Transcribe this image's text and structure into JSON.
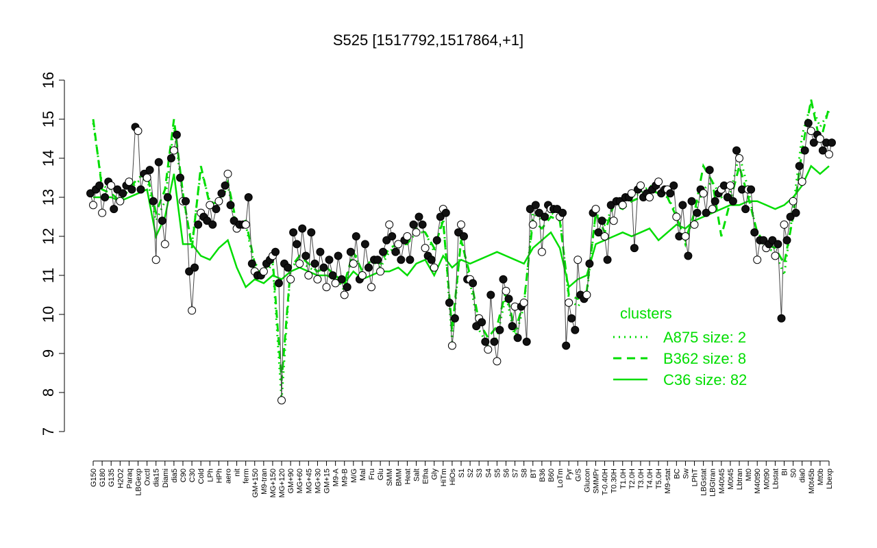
{
  "chart_data": {
    "type": "line",
    "title": "S525 [1517792,1517864,+1]",
    "ylim": [
      7,
      16
    ],
    "yticks": [
      7,
      8,
      9,
      10,
      11,
      12,
      13,
      14,
      15,
      16
    ],
    "x_tick_labels": [
      "G150",
      "G180",
      "G135",
      "H2O2",
      "Paraq",
      "LBGexp",
      "Oxctl",
      "dia15",
      "Diami",
      "dia5",
      "C90",
      "C30",
      "Cold",
      "LPh",
      "HPh",
      "aero",
      "nit",
      "ferm",
      "GM+150",
      "M9-tran",
      "MG+150",
      "MG+120",
      "GM+90",
      "MG+60",
      "MG+45",
      "MG+30",
      "GM+15",
      "M9-A",
      "M9-B",
      "M/G",
      "Mal",
      "Fru",
      "Glu",
      "SMM",
      "BMM",
      "Heat",
      "Salt",
      "Etha",
      "Gly",
      "HiTm",
      "HiOs",
      "S1",
      "S2",
      "S3",
      "S4",
      "S5",
      "S6",
      "S7",
      "S8",
      "BT",
      "B36",
      "B60",
      "LoTm",
      "Pyr",
      "G/S",
      "Glucon",
      "SMMPr",
      "T-0.40H",
      "T0.30H",
      "T1.0H",
      "T2.0H",
      "T3.0H",
      "T4.0H",
      "T5.0H",
      "M9-stat",
      "BC",
      "Sw",
      "LPhT",
      "LBGstat",
      "LBGtran",
      "M40t45",
      "M0t45",
      "Lbtran",
      "Mt0",
      "M40t90",
      "M0t90",
      "Lbstat",
      "BI",
      "S0",
      "dia0",
      "M0t45b",
      "Mt0b",
      "Lbexp"
    ],
    "series": [
      {
        "name": "A875 size: 2",
        "style": "dotted",
        "color": "#00dd00",
        "values": [
          14.9,
          13.3,
          13.2,
          13.1,
          13.2,
          13.4,
          13.5,
          12.4,
          12.9,
          14.8,
          13.0,
          11.8,
          13.7,
          12.9,
          12.8,
          13.3,
          12.2,
          12.3,
          11.2,
          11.0,
          11.3,
          7.8,
          11.2,
          11.4,
          11.2,
          11.1,
          11.2,
          11.0,
          10.6,
          11.7,
          11.0,
          11.4,
          11.2,
          11.6,
          11.8,
          11.8,
          12.1,
          12.1,
          11.6,
          12.5,
          9.3,
          12.0,
          10.8,
          9.6,
          9.2,
          9.4,
          10.5,
          9.4,
          10.2,
          12.6,
          12.4,
          12.6,
          12.5,
          10.4,
          10.2,
          10.5,
          12.6,
          12.3,
          12.8,
          12.8,
          13.0,
          13.1,
          13.3,
          13.2,
          13.0,
          12.6,
          11.8,
          12.6,
          13.2,
          13.4,
          13.0,
          13.1,
          14.1,
          13.2,
          12.0,
          11.7,
          11.6,
          11.0,
          12.7,
          14.6,
          15.4,
          14.8,
          15.2
        ]
      },
      {
        "name": "B362 size: 8",
        "style": "dashed",
        "color": "#00dd00",
        "values": [
          15.0,
          13.2,
          13.1,
          12.9,
          13.2,
          13.5,
          13.6,
          12.6,
          13.2,
          15.0,
          13.1,
          11.7,
          13.8,
          12.8,
          12.9,
          13.4,
          12.3,
          12.4,
          11.3,
          11.1,
          11.4,
          8.3,
          11.2,
          11.5,
          11.3,
          11.1,
          11.2,
          11.0,
          10.8,
          11.6,
          11.1,
          11.4,
          11.3,
          11.7,
          11.8,
          11.8,
          12.2,
          12.1,
          11.7,
          12.4,
          9.6,
          11.9,
          11.0,
          9.8,
          9.4,
          9.7,
          10.6,
          9.6,
          10.3,
          12.4,
          12.2,
          12.5,
          12.4,
          10.5,
          10.4,
          10.6,
          12.6,
          12.1,
          12.8,
          12.7,
          12.9,
          13.0,
          13.2,
          13.1,
          13.0,
          12.5,
          11.9,
          12.6,
          13.8,
          13.4,
          12.0,
          12.9,
          13.8,
          13.0,
          12.1,
          11.8,
          11.7,
          11.3,
          12.5,
          14.2,
          15.5,
          14.4,
          15.3
        ]
      },
      {
        "name": "C36 size: 82",
        "style": "solid",
        "color": "#00dd00",
        "values": [
          13.0,
          13.0,
          13.0,
          12.9,
          13.0,
          13.1,
          13.2,
          12.0,
          12.5,
          13.6,
          11.8,
          11.8,
          11.5,
          11.4,
          11.7,
          11.9,
          11.2,
          10.7,
          10.9,
          10.8,
          11.0,
          10.9,
          11.1,
          11.2,
          11.1,
          11.0,
          11.0,
          10.9,
          10.8,
          11.1,
          10.9,
          11.0,
          11.1,
          11.1,
          11.2,
          11.0,
          11.3,
          11.4,
          11.0,
          11.5,
          11.2,
          11.4,
          11.3,
          11.4,
          11.5,
          11.6,
          11.5,
          11.4,
          11.3,
          11.7,
          11.9,
          12.1,
          11.7,
          10.7,
          10.9,
          11.0,
          11.8,
          11.9,
          12.0,
          12.1,
          12.0,
          12.1,
          12.2,
          11.9,
          12.1,
          12.3,
          12.2,
          12.4,
          12.5,
          12.6,
          12.7,
          12.8,
          12.8,
          12.9,
          12.9,
          12.8,
          12.7,
          12.8,
          13.0,
          13.3,
          13.8,
          13.6,
          13.8
        ]
      }
    ],
    "observations": [
      [
        13.1,
        12.8,
        13.2
      ],
      [
        13.3,
        12.6,
        13.0
      ],
      [
        13.4,
        13.3,
        12.7
      ],
      [
        13.2,
        12.9,
        13.1
      ],
      [
        13.3,
        13.4,
        13.2
      ],
      [
        14.8,
        14.7,
        13.2
      ],
      [
        13.6,
        13.5,
        13.7
      ],
      [
        12.9,
        11.4,
        13.9
      ],
      [
        12.4,
        11.8,
        13.0
      ],
      [
        14.0,
        14.2,
        14.6
      ],
      [
        13.5,
        12.9,
        12.9
      ],
      [
        11.1,
        10.1,
        11.2
      ],
      [
        12.3,
        12.6,
        12.5
      ],
      [
        12.4,
        12.8,
        12.3
      ],
      [
        12.7,
        12.9,
        13.1
      ],
      [
        13.3,
        13.6,
        12.8
      ],
      [
        12.4,
        12.2,
        12.3
      ],
      [
        12.3,
        12.3,
        13.0
      ],
      [
        11.3,
        11.1,
        11.0
      ],
      [
        11.0,
        11.1,
        11.3
      ],
      [
        11.4,
        11.5,
        11.6
      ],
      [
        10.8,
        7.8,
        11.3
      ],
      [
        11.2,
        10.9,
        12.1
      ],
      [
        11.8,
        11.3,
        12.2
      ],
      [
        11.5,
        11.0,
        12.1
      ],
      [
        11.3,
        10.9,
        11.6
      ],
      [
        11.2,
        10.7,
        11.4
      ],
      [
        11.0,
        10.8,
        11.5
      ],
      [
        10.9,
        10.5,
        10.7
      ],
      [
        11.6,
        11.3,
        12.0
      ],
      [
        10.9,
        11.0,
        11.8
      ],
      [
        11.2,
        10.7,
        11.4
      ],
      [
        11.4,
        11.1,
        11.6
      ],
      [
        11.9,
        12.3,
        12.0
      ],
      [
        11.6,
        11.8,
        11.4
      ],
      [
        11.9,
        12.0,
        11.4
      ],
      [
        12.3,
        12.1,
        12.5
      ],
      [
        12.3,
        11.7,
        11.5
      ],
      [
        11.4,
        11.2,
        11.9
      ],
      [
        12.5,
        12.7,
        12.6
      ],
      [
        10.3,
        9.2,
        9.9
      ],
      [
        12.1,
        12.3,
        12.0
      ],
      [
        10.9,
        10.9,
        10.8
      ],
      [
        9.7,
        9.9,
        9.8
      ],
      [
        9.3,
        9.1,
        10.5
      ],
      [
        9.3,
        8.8,
        9.6
      ],
      [
        10.9,
        10.6,
        10.4
      ],
      [
        9.7,
        10.2,
        9.4
      ],
      [
        10.2,
        10.3,
        9.3
      ],
      [
        12.7,
        12.3,
        12.8
      ],
      [
        12.6,
        11.6,
        12.5
      ],
      [
        12.8,
        12.7,
        12.7
      ],
      [
        12.7,
        12.5,
        12.6
      ],
      [
        9.2,
        10.3,
        9.9
      ],
      [
        9.6,
        11.4,
        10.5
      ],
      [
        10.4,
        10.5,
        11.3
      ],
      [
        12.6,
        12.7,
        12.1
      ],
      [
        12.4,
        12.0,
        11.4
      ],
      [
        12.8,
        12.4,
        12.9
      ],
      [
        12.9,
        12.8,
        13.0
      ],
      [
        13.0,
        13.1,
        11.7
      ],
      [
        13.2,
        13.3,
        13.0
      ],
      [
        13.1,
        13.0,
        13.2
      ],
      [
        13.3,
        13.4,
        13.1
      ],
      [
        13.2,
        13.2,
        13.1
      ],
      [
        13.3,
        12.5,
        12.0
      ],
      [
        12.8,
        12.0,
        11.5
      ],
      [
        12.9,
        12.3,
        12.6
      ],
      [
        13.2,
        13.1,
        12.6
      ],
      [
        13.7,
        12.7,
        12.9
      ],
      [
        13.1,
        13.2,
        13.3
      ],
      [
        13.0,
        13.3,
        12.9
      ],
      [
        14.2,
        14.0,
        13.2
      ],
      [
        12.7,
        13.2,
        13.2
      ],
      [
        12.1,
        11.4,
        11.9
      ],
      [
        11.9,
        11.7,
        11.8
      ],
      [
        11.9,
        11.5,
        11.8
      ],
      [
        9.9,
        12.3,
        11.9
      ],
      [
        12.5,
        12.9,
        12.6
      ],
      [
        13.8,
        13.4,
        14.2
      ],
      [
        14.9,
        14.7,
        14.4
      ],
      [
        14.6,
        14.5,
        14.2
      ],
      [
        14.4,
        14.1,
        14.4
      ]
    ],
    "legend": {
      "title": "clusters",
      "position": "right",
      "entries": [
        "A875 size: 2",
        "B362 size: 8",
        "C36 size: 82"
      ]
    },
    "xlabel": "",
    "ylabel": "",
    "grid": false
  }
}
